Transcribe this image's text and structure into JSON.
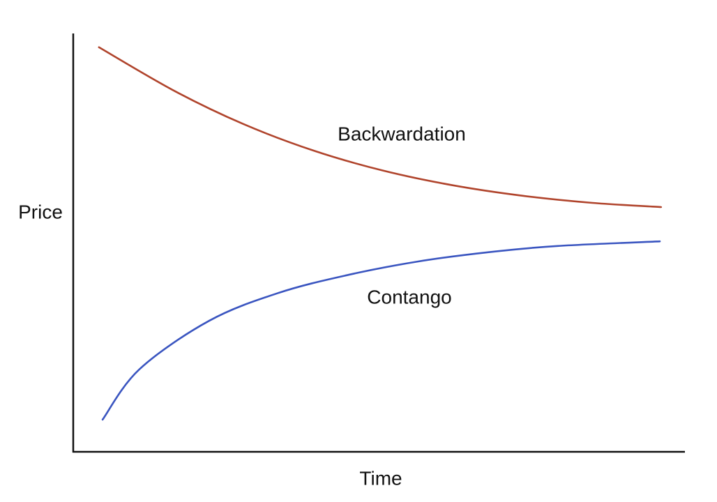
{
  "chart_data": {
    "type": "line",
    "x_label": "Time",
    "y_label": "Price",
    "xlim": [
      0,
      100
    ],
    "ylim": [
      0,
      100
    ],
    "series": [
      {
        "name": "Backwardation",
        "color": "#b0442c",
        "x": [
          4.2,
          16.5,
          27.9,
          39.3,
          50.7,
          62.1,
          73.5,
          84.9,
          96.1
        ],
        "values": [
          96.7,
          86.3,
          78.3,
          72.0,
          67.2,
          63.7,
          61.2,
          59.5,
          58.5
        ]
      },
      {
        "name": "Contango",
        "color": "#3a55c0",
        "x": [
          4.8,
          10.8,
          22.2,
          33.6,
          45.0,
          56.4,
          67.8,
          79.2,
          95.9
        ],
        "values": [
          7.7,
          19.7,
          31.3,
          38.0,
          42.3,
          45.5,
          47.7,
          49.2,
          50.3
        ]
      }
    ]
  }
}
